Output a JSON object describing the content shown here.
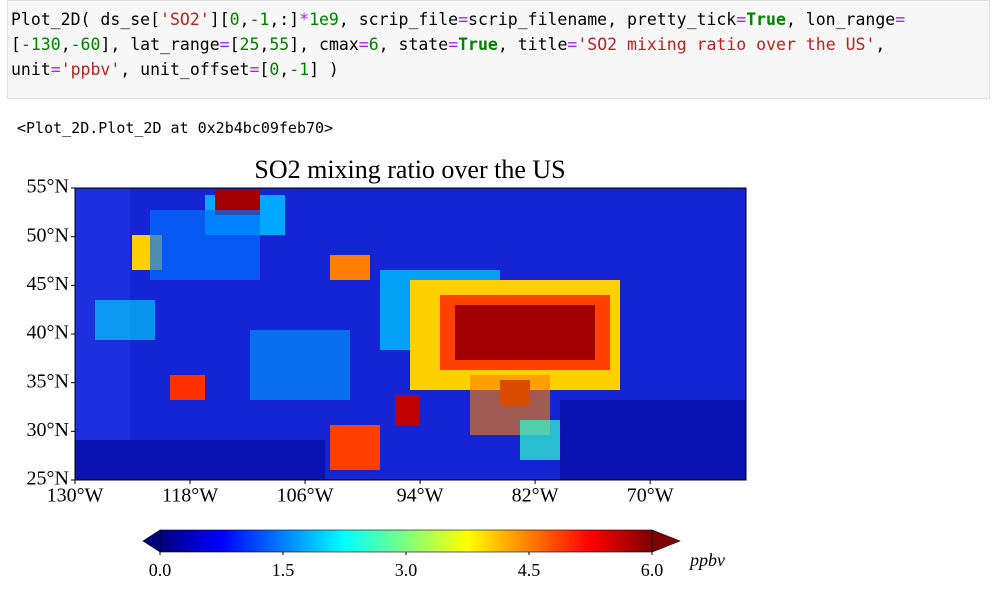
{
  "code_cell": {
    "lines": [
      [
        {
          "text": "Plot_2D( ds_se["
        },
        {
          "text": "'SO2'",
          "color": "#ba2121"
        },
        {
          "text": "]["
        },
        {
          "text": "0",
          "color": "#008000"
        },
        {
          "text": ","
        },
        {
          "text": "-1",
          "color": "#008000"
        },
        {
          "text": ",:]"
        },
        {
          "text": "*",
          "color": "#aa22ff"
        },
        {
          "text": "1e9",
          "color": "#008000"
        },
        {
          "text": ", scrip_file"
        },
        {
          "text": "=",
          "color": "#aa22ff"
        },
        {
          "text": "scrip_filename, pretty_tick"
        },
        {
          "text": "=",
          "color": "#aa22ff"
        },
        {
          "text": "True",
          "color": "#008000",
          "bold": true
        },
        {
          "text": ", lon_range"
        },
        {
          "text": "=",
          "color": "#aa22ff"
        }
      ],
      [
        {
          "text": "["
        },
        {
          "text": "-130",
          "color": "#008000"
        },
        {
          "text": ","
        },
        {
          "text": "-60",
          "color": "#008000"
        },
        {
          "text": "], lat_range"
        },
        {
          "text": "=",
          "color": "#aa22ff"
        },
        {
          "text": "["
        },
        {
          "text": "25",
          "color": "#008000"
        },
        {
          "text": ","
        },
        {
          "text": "55",
          "color": "#008000"
        },
        {
          "text": "], cmax"
        },
        {
          "text": "=",
          "color": "#aa22ff"
        },
        {
          "text": "6",
          "color": "#008000"
        },
        {
          "text": ", state"
        },
        {
          "text": "=",
          "color": "#aa22ff"
        },
        {
          "text": "True",
          "color": "#008000",
          "bold": true
        },
        {
          "text": ", title"
        },
        {
          "text": "=",
          "color": "#aa22ff"
        },
        {
          "text": "'SO2 mixing ratio over the US'",
          "color": "#ba2121"
        },
        {
          "text": ","
        }
      ],
      [
        {
          "text": "unit"
        },
        {
          "text": "=",
          "color": "#aa22ff"
        },
        {
          "text": "'ppbv'",
          "color": "#ba2121"
        },
        {
          "text": ", unit_offset"
        },
        {
          "text": "=",
          "color": "#aa22ff"
        },
        {
          "text": "["
        },
        {
          "text": "0",
          "color": "#008000"
        },
        {
          "text": ","
        },
        {
          "text": "-1",
          "color": "#008000"
        },
        {
          "text": "] )"
        }
      ]
    ]
  },
  "output_text": "<Plot_2D.Plot_2D at 0x2b4bc09feb70>",
  "chart_data": {
    "type": "map",
    "title": "SO2 mixing ratio over the US",
    "xlim": [
      -130,
      -60
    ],
    "ylim": [
      25,
      55
    ],
    "xticks": [
      {
        "value": -130,
        "label": "130°W"
      },
      {
        "value": -118,
        "label": "118°W"
      },
      {
        "value": -106,
        "label": "106°W"
      },
      {
        "value": -94,
        "label": "94°W"
      },
      {
        "value": -82,
        "label": "82°W"
      },
      {
        "value": -70,
        "label": "70°W"
      }
    ],
    "yticks": [
      {
        "value": 25,
        "label": "25°N"
      },
      {
        "value": 30,
        "label": "30°N"
      },
      {
        "value": 35,
        "label": "35°N"
      },
      {
        "value": 40,
        "label": "40°N"
      },
      {
        "value": 45,
        "label": "45°N"
      },
      {
        "value": 50,
        "label": "50°N"
      },
      {
        "value": 55,
        "label": "55°N"
      }
    ],
    "colorbar": {
      "lim": [
        0,
        6
      ],
      "ticks": [
        {
          "value": 0,
          "label": "0.0"
        },
        1.5,
        {
          "value": 3,
          "label": "3.0"
        },
        4.5,
        {
          "value": 6,
          "label": "6.0"
        }
      ],
      "unit": "ppbv",
      "colors": [
        "#00007f",
        "#0000ff",
        "#007fff",
        "#00ffff",
        "#7fff7f",
        "#ffff00",
        "#ff7f00",
        "#ff0000",
        "#7f0000"
      ]
    }
  }
}
